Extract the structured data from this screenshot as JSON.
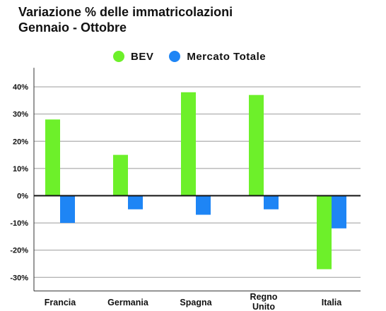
{
  "chart_data": {
    "type": "bar",
    "title_lines": [
      "Variazione % delle immatricolazioni",
      "Gennaio - Ottobre"
    ],
    "xlabel": "",
    "ylabel": "",
    "categories": [
      [
        "Francia"
      ],
      [
        "Germania"
      ],
      [
        "Spagna"
      ],
      [
        "Regno",
        "Unito"
      ],
      [
        "Italia"
      ]
    ],
    "series": [
      {
        "name": "BEV",
        "color": "#6DF02A",
        "values": [
          28,
          15,
          38,
          37,
          -27
        ]
      },
      {
        "name": "Mercato Totale",
        "color": "#1E85F5",
        "values": [
          -10,
          -5,
          -7,
          -5,
          -12
        ]
      }
    ],
    "ylim": [
      -35,
      47
    ],
    "yticks": [
      40,
      30,
      20,
      10,
      0,
      -10,
      -20,
      -30
    ],
    "ytick_labels": [
      "40%",
      "30%",
      "20%",
      "10%",
      "0%",
      "-10%",
      "-20%",
      "-30%"
    ],
    "grid": true,
    "legend_position": "top-center"
  }
}
